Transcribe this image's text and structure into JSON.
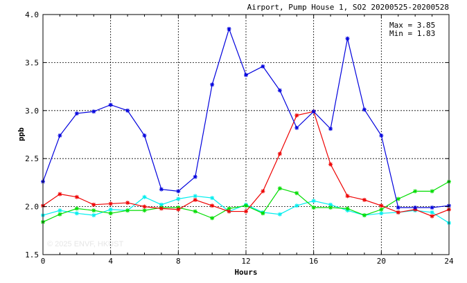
{
  "title": "Airport, Pump House 1, SO2 20200525-20200528",
  "stats": {
    "max_label": "Max = 3.85",
    "min_label": "Min = 1.83"
  },
  "watermark": "© 2025  ENVF, HKUST",
  "chart_data": {
    "type": "line",
    "title": "Airport, Pump House 1, SO2 20200525-20200528",
    "xlabel": "Hours",
    "ylabel": "ppb",
    "xlim": [
      0,
      24
    ],
    "ylim": [
      1.5,
      4.0
    ],
    "xticks": [
      0,
      4,
      8,
      12,
      16,
      20,
      24
    ],
    "yticks": [
      1.5,
      2.0,
      2.5,
      3.0,
      3.5,
      4.0
    ],
    "ytick_labels": [
      "1.5",
      "2.0",
      "2.5",
      "3.0",
      "3.5",
      "4.0"
    ],
    "grid": true,
    "x": [
      0,
      1,
      2,
      3,
      4,
      5,
      6,
      7,
      8,
      9,
      10,
      11,
      12,
      13,
      14,
      15,
      16,
      17,
      18,
      19,
      20,
      21,
      22,
      23,
      24
    ],
    "series": [
      {
        "color": "#0000dd",
        "values": [
          2.26,
          2.74,
          2.97,
          2.99,
          3.06,
          3.0,
          2.74,
          2.18,
          2.16,
          2.31,
          3.27,
          3.85,
          3.37,
          3.46,
          3.21,
          2.82,
          2.99,
          2.81,
          3.75,
          3.01,
          2.74,
          1.99,
          1.99,
          1.99,
          2.01
        ]
      },
      {
        "color": "#ee0000",
        "values": [
          2.01,
          2.13,
          2.1,
          2.02,
          2.03,
          2.04,
          2.0,
          1.98,
          1.97,
          2.07,
          2.01,
          1.95,
          1.95,
          2.16,
          2.55,
          2.95,
          2.99,
          2.44,
          2.11,
          2.07,
          2.01,
          1.94,
          1.97,
          1.9,
          1.97
        ]
      },
      {
        "color": "#00dd00",
        "values": [
          1.84,
          1.92,
          1.98,
          1.96,
          1.93,
          1.96,
          1.96,
          1.99,
          1.99,
          1.95,
          1.88,
          1.98,
          2.01,
          1.93,
          2.19,
          2.14,
          1.99,
          1.99,
          1.98,
          1.91,
          1.97,
          2.08,
          2.16,
          2.16,
          2.26
        ]
      },
      {
        "color": "#00eeee",
        "values": [
          1.91,
          1.96,
          1.93,
          1.91,
          1.97,
          1.96,
          2.1,
          2.02,
          2.08,
          2.11,
          2.09,
          1.95,
          2.02,
          1.94,
          1.92,
          2.01,
          2.06,
          2.02,
          1.96,
          1.91,
          1.93,
          1.94,
          1.96,
          1.94,
          1.83
        ]
      }
    ]
  }
}
